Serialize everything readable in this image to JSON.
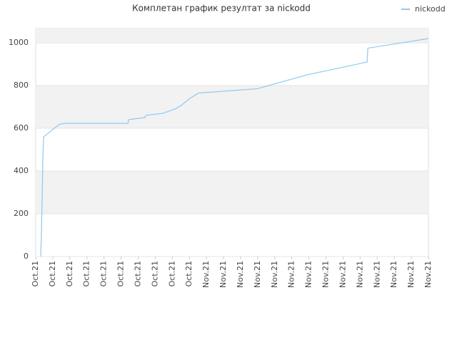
{
  "chart_data": {
    "type": "line",
    "title": "Комплетан график резултат за nickodd",
    "x": [
      0.29,
      0.33,
      0.38,
      0.42,
      0.46,
      1.38,
      1.67,
      5.4,
      5.44,
      5.86,
      6.4,
      6.44,
      6.9,
      7.44,
      8.16,
      8.57,
      8.99,
      9.54,
      10.04,
      12.97,
      15.89,
      19.41,
      19.45,
      23.0
    ],
    "series": [
      {
        "name": "nickodd",
        "color": "#8ec8f0",
        "values": [
          0,
          90,
          280,
          460,
          560,
          618,
          623,
          623,
          640,
          645,
          650,
          660,
          665,
          670,
          690,
          710,
          738,
          765,
          768,
          785,
          850,
          910,
          975,
          1020
        ]
      }
    ],
    "xlim": [
      0,
      23
    ],
    "xticks": [
      {
        "value": 0,
        "label": "Oct.21"
      },
      {
        "value": 1,
        "label": "Oct.21"
      },
      {
        "value": 2,
        "label": "Oct.21"
      },
      {
        "value": 3,
        "label": "Oct.21"
      },
      {
        "value": 4,
        "label": "Oct.21"
      },
      {
        "value": 5,
        "label": "Oct.21"
      },
      {
        "value": 6,
        "label": "Oct.21"
      },
      {
        "value": 7,
        "label": "Oct.21"
      },
      {
        "value": 8,
        "label": "Oct.21"
      },
      {
        "value": 9,
        "label": "Oct.21"
      },
      {
        "value": 10,
        "label": "Nov.21"
      },
      {
        "value": 11,
        "label": "Nov.21"
      },
      {
        "value": 12,
        "label": "Nov.21"
      },
      {
        "value": 13,
        "label": "Nov.21"
      },
      {
        "value": 14,
        "label": "Nov.21"
      },
      {
        "value": 15,
        "label": "Nov.21"
      },
      {
        "value": 16,
        "label": "Nov.21"
      },
      {
        "value": 17,
        "label": "Nov.21"
      },
      {
        "value": 18,
        "label": "Nov.21"
      },
      {
        "value": 19,
        "label": "Nov.21"
      },
      {
        "value": 20,
        "label": "Nov.21"
      },
      {
        "value": 21,
        "label": "Nov.21"
      },
      {
        "value": 22,
        "label": "Nov.21"
      },
      {
        "value": 23,
        "label": "Nov.21"
      }
    ],
    "ylim": [
      0,
      1067
    ],
    "yticks": [
      0,
      200,
      400,
      600,
      800,
      1000
    ],
    "grid": true,
    "legend": "top-right"
  }
}
